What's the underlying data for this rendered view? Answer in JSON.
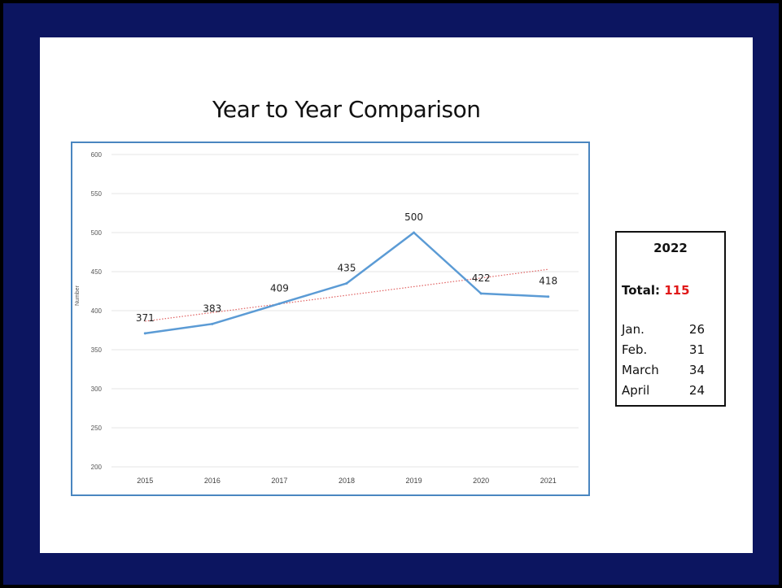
{
  "slide": {
    "title": "Year to Year Comparison"
  },
  "chart_data": {
    "type": "line",
    "title": "Year to Year Comparison",
    "xlabel": "",
    "ylabel": "Number",
    "categories": [
      "2015",
      "2016",
      "2017",
      "2018",
      "2019",
      "2020",
      "2021"
    ],
    "series": [
      {
        "values": [
          371,
          383,
          409,
          435,
          500,
          422,
          418
        ],
        "color": "#5b9bd5",
        "data_labels": [
          "371",
          "383",
          "409",
          "435",
          "500",
          "422",
          "418"
        ]
      }
    ],
    "trendline": {
      "type": "linear",
      "style": "dotted",
      "color": "#e06060"
    },
    "ylim": [
      200,
      600
    ],
    "yticks": [
      "200",
      "250",
      "300",
      "350",
      "400",
      "450",
      "500",
      "550",
      "600"
    ],
    "grid": true,
    "legend": "none"
  },
  "info": {
    "year": "2022",
    "total_label": "Total:",
    "total_value": "115",
    "months": [
      {
        "month": "Jan.",
        "value": "26"
      },
      {
        "month": "Feb.",
        "value": "31"
      },
      {
        "month": "March",
        "value": "34"
      },
      {
        "month": "April",
        "value": "24"
      }
    ],
    "total_color": "#e01818"
  }
}
